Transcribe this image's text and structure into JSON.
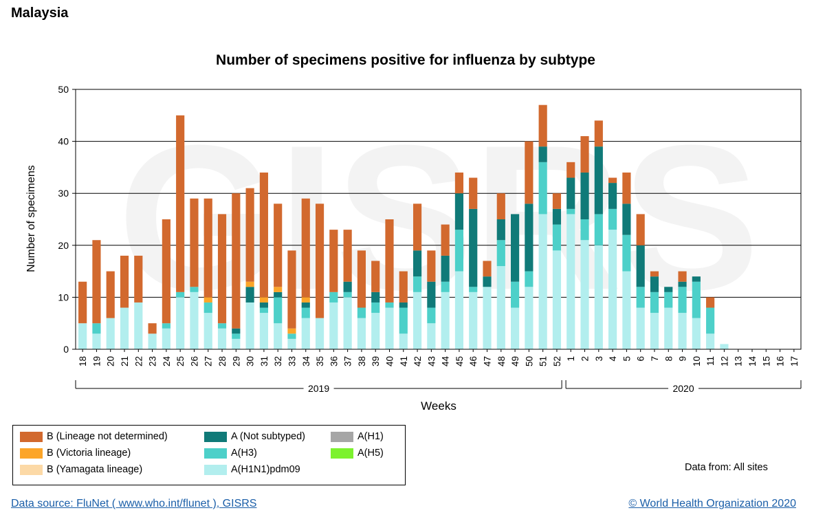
{
  "page": {
    "country": "Malaysia",
    "data_from": "Data from: All sites",
    "data_source": "Data source: FluNet ( www.who.int/flunet ), GISRS",
    "copyright": "© World Health Organization 2020",
    "watermark": "GISRS"
  },
  "chart_data": {
    "type": "bar",
    "stacked": true,
    "title": "Number of specimens positive for influenza by subtype",
    "xlabel": "Weeks",
    "ylabel": "Number of specimens",
    "ylim": [
      0,
      50
    ],
    "yticks": [
      0,
      10,
      20,
      30,
      40,
      50
    ],
    "grid": true,
    "legend_position": "bottom-left",
    "categories": [
      "18",
      "19",
      "20",
      "21",
      "22",
      "23",
      "24",
      "25",
      "26",
      "27",
      "28",
      "29",
      "30",
      "31",
      "32",
      "33",
      "34",
      "35",
      "36",
      "37",
      "38",
      "39",
      "40",
      "41",
      "42",
      "43",
      "44",
      "45",
      "46",
      "47",
      "48",
      "49",
      "50",
      "51",
      "52",
      "1",
      "2",
      "3",
      "4",
      "5",
      "6",
      "7",
      "8",
      "9",
      "10",
      "11",
      "12",
      "13",
      "14",
      "15",
      "16",
      "17"
    ],
    "year_groups": [
      {
        "label": "2019",
        "first": "18",
        "last": "52"
      },
      {
        "label": "2020",
        "first": "1",
        "last": "17"
      }
    ],
    "series": [
      {
        "name": "A(H1N1)pdm09",
        "color": "#b2eeee",
        "values": [
          5,
          3,
          6,
          8,
          9,
          3,
          4,
          10,
          11,
          7,
          4,
          2,
          9,
          7,
          5,
          2,
          6,
          6,
          9,
          10,
          6,
          7,
          8,
          3,
          11,
          5,
          11,
          15,
          11,
          12,
          16,
          8,
          12,
          26,
          19,
          26,
          21,
          20,
          23,
          15,
          8,
          7,
          8,
          7,
          6,
          3,
          1,
          0,
          0,
          0,
          0,
          0
        ]
      },
      {
        "name": "A(H3)",
        "color": "#4dd0c9",
        "values": [
          0,
          2,
          0,
          0,
          0,
          0,
          1,
          1,
          1,
          2,
          1,
          1,
          0,
          1,
          5,
          1,
          2,
          0,
          2,
          1,
          2,
          2,
          1,
          5,
          3,
          3,
          2,
          8,
          1,
          0,
          5,
          5,
          3,
          10,
          5,
          1,
          4,
          6,
          4,
          7,
          4,
          4,
          3,
          5,
          7,
          5,
          0,
          0,
          0,
          0,
          0,
          0
        ]
      },
      {
        "name": "A(Not subtyped)",
        "color": "#107a78",
        "values": [
          0,
          0,
          0,
          0,
          0,
          0,
          0,
          0,
          0,
          0,
          0,
          1,
          3,
          1,
          1,
          0,
          1,
          0,
          0,
          2,
          0,
          2,
          0,
          1,
          5,
          5,
          5,
          7,
          15,
          2,
          4,
          13,
          13,
          3,
          3,
          6,
          9,
          13,
          5,
          6,
          8,
          3,
          1,
          1,
          1,
          0,
          0,
          0,
          0,
          0,
          0,
          0
        ]
      },
      {
        "name": "A(H1)",
        "color": "#a6a6a6",
        "values": [
          0,
          0,
          0,
          0,
          0,
          0,
          0,
          0,
          0,
          0,
          0,
          0,
          0,
          0,
          0,
          0,
          0,
          0,
          0,
          0,
          0,
          0,
          0,
          0,
          0,
          0,
          0,
          0,
          0,
          0,
          0,
          0,
          0,
          0,
          0,
          0,
          0,
          0,
          0,
          0,
          0,
          0,
          0,
          0,
          0,
          0,
          0,
          0,
          0,
          0,
          0,
          0
        ]
      },
      {
        "name": "A(H5)",
        "color": "#7cf22e",
        "values": [
          0,
          0,
          0,
          0,
          0,
          0,
          0,
          0,
          0,
          0,
          0,
          0,
          0,
          0,
          0,
          0,
          0,
          0,
          0,
          0,
          0,
          0,
          0,
          0,
          0,
          0,
          0,
          0,
          0,
          0,
          0,
          0,
          0,
          0,
          0,
          0,
          0,
          0,
          0,
          0,
          0,
          0,
          0,
          0,
          0,
          0,
          0,
          0,
          0,
          0,
          0,
          0
        ]
      },
      {
        "name": "B (Yamagata lineage)",
        "color": "#fcd9a6",
        "values": [
          0,
          0,
          0,
          0,
          0,
          0,
          0,
          0,
          0,
          0,
          0,
          0,
          0,
          0,
          0,
          0,
          0,
          0,
          0,
          0,
          0,
          0,
          0,
          0,
          0,
          0,
          0,
          0,
          0,
          0,
          0,
          0,
          0,
          0,
          0,
          0,
          0,
          0,
          0,
          0,
          0,
          0,
          0,
          0,
          0,
          0,
          0,
          0,
          0,
          0,
          0,
          0
        ]
      },
      {
        "name": "B (Victoria lineage)",
        "color": "#fca529",
        "values": [
          0,
          0,
          0,
          0,
          0,
          0,
          0,
          0,
          0,
          1,
          0,
          0,
          1,
          1,
          1,
          1,
          1,
          0,
          0,
          0,
          0,
          0,
          0,
          0,
          0,
          0,
          0,
          0,
          0,
          0,
          0,
          0,
          0,
          0,
          0,
          0,
          0,
          0,
          0,
          0,
          0,
          0,
          0,
          0,
          0,
          0,
          0,
          0,
          0,
          0,
          0,
          0
        ]
      },
      {
        "name": "B (Lineage not determined)",
        "color": "#d2692e",
        "values": [
          8,
          16,
          9,
          10,
          9,
          2,
          20,
          34,
          17,
          19,
          21,
          26,
          18,
          24,
          16,
          15,
          19,
          22,
          12,
          10,
          11,
          6,
          16,
          6,
          9,
          6,
          6,
          4,
          6,
          3,
          5,
          0,
          12,
          8,
          3,
          3,
          7,
          5,
          1,
          6,
          6,
          1,
          0,
          2,
          0,
          2,
          0,
          0,
          0,
          0,
          0,
          0
        ]
      }
    ],
    "legend_order": [
      "B (Lineage not determined)",
      "A (Not subtyped)",
      "A(H1)",
      "B (Victoria lineage)",
      "A(H3)",
      "A(H5)",
      "B (Yamagata lineage)",
      "A(H1N1)pdm09"
    ],
    "legend_labels": {
      "B (Lineage not determined)": "B (Lineage not determined)",
      "A (Not subtyped)": "A (Not subtyped)",
      "A(H1)": "A(H1)",
      "B (Victoria lineage)": "B (Victoria lineage)",
      "A(H3)": "A(H3)",
      "A(H5)": "A(H5)",
      "B (Yamagata lineage)": "B (Yamagata lineage)",
      "A(H1N1)pdm09": "A(H1N1)pdm09"
    }
  }
}
